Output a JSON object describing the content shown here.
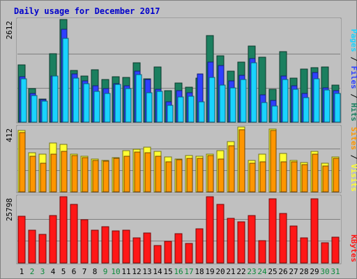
{
  "chart_data": {
    "type": "bar",
    "title": "Daily usage for December 2017",
    "categories": [
      "1",
      "2",
      "3",
      "4",
      "5",
      "6",
      "7",
      "8",
      "9",
      "10",
      "11",
      "12",
      "13",
      "14",
      "15",
      "16",
      "17",
      "18",
      "19",
      "20",
      "21",
      "22",
      "23",
      "24",
      "25",
      "26",
      "27",
      "28",
      "29",
      "30",
      "31"
    ],
    "weekend_days": [
      "2",
      "3",
      "9",
      "10",
      "16",
      "17",
      "23",
      "24",
      "30",
      "31"
    ],
    "panels": [
      {
        "id": "hits",
        "y_label_max": "2612",
        "ylim": [
          0,
          2612
        ],
        "axis_title": [
          "Pages",
          "Files",
          "Hits"
        ],
        "series": [
          {
            "name": "Hits",
            "color": "#1b7f5f",
            "values": [
              1460,
              850,
              580,
              1740,
              2612,
              1310,
              1170,
              1340,
              1090,
              1150,
              1140,
              1510,
              1100,
              1400,
              800,
              1000,
              880,
              1120,
              2200,
              1690,
              1300,
              1530,
              1930,
              1650,
              830,
              1800,
              1120,
              1350,
              1380,
              1400,
              950
            ]
          },
          {
            "name": "Files",
            "color": "#2e40ff",
            "values": [
              1160,
              720,
              560,
              1180,
              2370,
              1230,
              1040,
              930,
              850,
              980,
              930,
              1290,
              1080,
              830,
              520,
              800,
              750,
              1220,
              1520,
              1440,
              1050,
              1190,
              1610,
              690,
              550,
              1170,
              920,
              720,
              1260,
              870,
              800
            ]
          },
          {
            "name": "Pages",
            "color": "#19d3ff",
            "values": [
              1110,
              680,
              540,
              1170,
              2140,
              1120,
              980,
              790,
              730,
              960,
              860,
              1210,
              740,
              780,
              430,
              640,
              660,
              510,
              1140,
              940,
              870,
              1080,
              1510,
              490,
              400,
              1090,
              840,
              620,
              1110,
              820,
              720
            ]
          }
        ]
      },
      {
        "id": "visits",
        "y_label_max": "412",
        "ylim": [
          0,
          412
        ],
        "axis_title": [
          "Sites",
          "Visits"
        ],
        "series": [
          {
            "name": "Visits",
            "color": "#ffff33",
            "values": [
              390,
              250,
              240,
              310,
              300,
              240,
              225,
              208,
              200,
              218,
              260,
              270,
              285,
              258,
              220,
              208,
              230,
              225,
              240,
              260,
              318,
              412,
              198,
              238,
              399,
              244,
              200,
              188,
              256,
              180,
              220
            ]
          },
          {
            "name": "Sites",
            "color": "#ff9600",
            "values": [
              378,
              228,
              180,
              240,
              258,
              230,
              215,
              200,
              193,
              214,
              228,
              254,
              250,
              224,
              190,
              205,
              212,
              212,
              230,
              208,
              292,
              395,
              180,
              190,
              390,
              190,
              190,
              173,
              240,
              163,
              213
            ]
          }
        ]
      },
      {
        "id": "kbytes",
        "y_label_max": "25798",
        "ylim": [
          0,
          25798
        ],
        "axis_title": [
          "KBytes"
        ],
        "series": [
          {
            "name": "KBytes",
            "color": "#ff1717",
            "values": [
              18200,
              12800,
              11000,
              18500,
              25798,
              22700,
              16800,
              12700,
              14000,
              12400,
              12700,
              9700,
              11800,
              6800,
              8400,
              11500,
              7600,
              13200,
              25700,
              22800,
              17400,
              15900,
              18600,
              8600,
              25100,
              19300,
              14400,
              9700,
              25000,
              8000,
              10100
            ]
          }
        ]
      }
    ]
  }
}
